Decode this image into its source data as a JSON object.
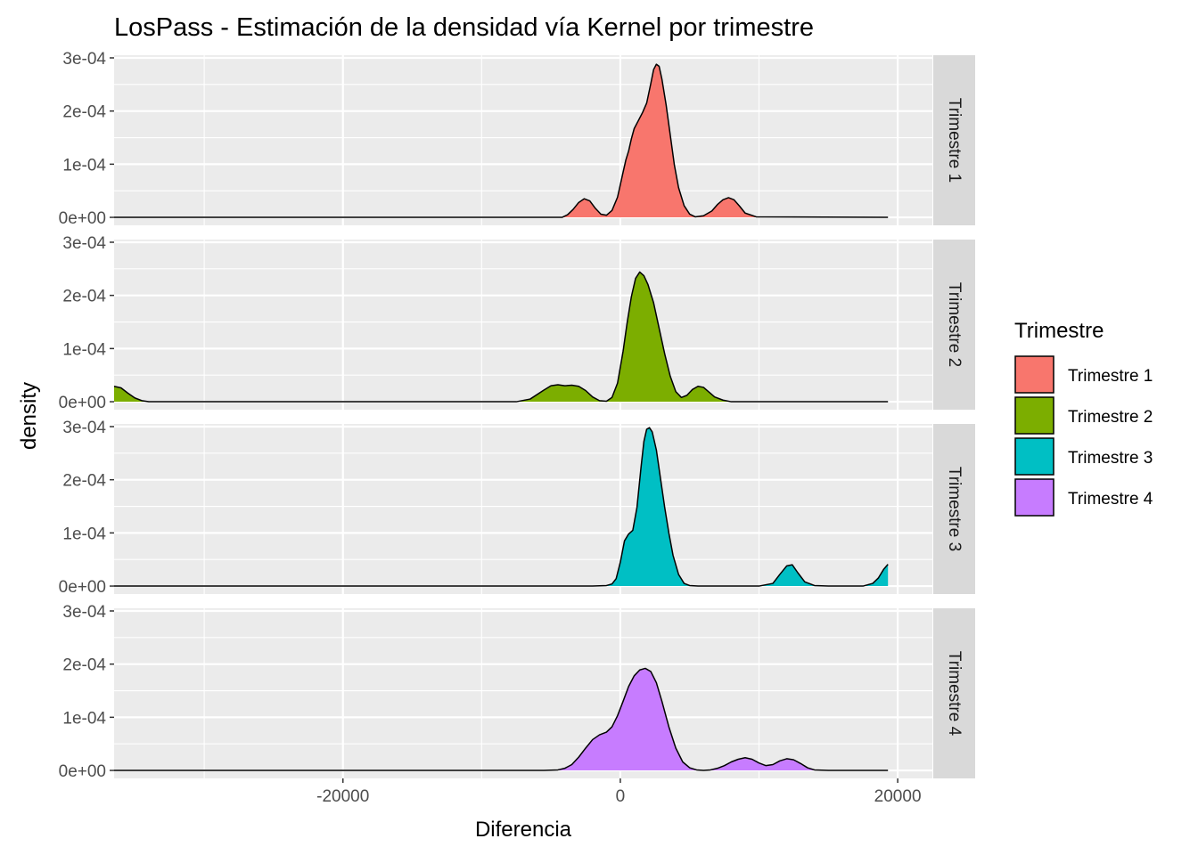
{
  "chart_data": {
    "type": "area",
    "subtype": "density-facet",
    "title": "LosPass - Estimación de la densidad vía Kernel por trimestre",
    "xlabel": "Diferencia",
    "ylabel": "density",
    "xlim": [
      -36500,
      22500
    ],
    "ylim": [
      -1.5e-05,
      0.000305
    ],
    "x_ticks": [
      -20000,
      0,
      20000
    ],
    "x_tick_labels": [
      "-20000",
      "0",
      "20000"
    ],
    "x_minor_ticks": [
      -30000,
      -10000,
      10000
    ],
    "y_ticks": [
      0,
      0.0001,
      0.0002,
      0.0003
    ],
    "y_tick_labels": [
      "0e+00",
      "1e-04",
      "2e-04",
      "3e-04"
    ],
    "y_minor_ticks": [
      5e-05,
      0.00015,
      0.00025
    ],
    "grid": true,
    "legend": {
      "title": "Trimestre",
      "position": "right",
      "entries": [
        "Trimestre 1",
        "Trimestre 2",
        "Trimestre 3",
        "Trimestre 4"
      ]
    },
    "series": [
      {
        "name": "Trimestre 1",
        "facet": "Trimestre 1",
        "color": "#F8766D",
        "x": [
          -36500,
          -6000,
          -4200,
          -3800,
          -3400,
          -3000,
          -2600,
          -2200,
          -1800,
          -1400,
          -1000,
          -600,
          -200,
          200,
          400,
          600,
          800,
          1000,
          1300,
          1600,
          1900,
          2200,
          2400,
          2600,
          2800,
          3000,
          3300,
          3600,
          3900,
          4200,
          4600,
          5000,
          5400,
          6000,
          6600,
          7000,
          7400,
          7800,
          8200,
          8600,
          9000,
          9800,
          19300
        ],
        "y": [
          0,
          0,
          0,
          5e-06,
          1.5e-05,
          2.8e-05,
          3.5e-05,
          3.1e-05,
          1.7e-05,
          6e-06,
          4e-06,
          1.3e-05,
          3.8e-05,
          8.5e-05,
          0.000108,
          0.000125,
          0.000148,
          0.000167,
          0.000182,
          0.000197,
          0.000215,
          0.000252,
          0.000278,
          0.000288,
          0.000284,
          0.00026,
          0.000212,
          0.000155,
          9.8e-05,
          5.6e-05,
          2.2e-05,
          6e-06,
          1e-06,
          3e-06,
          1.2e-05,
          2.4e-05,
          3.3e-05,
          3.7e-05,
          3.3e-05,
          2.1e-05,
          8e-06,
          1e-06,
          0
        ]
      },
      {
        "name": "Trimestre 2",
        "facet": "Trimestre 2",
        "color": "#7CAE00",
        "x": [
          -36500,
          -36000,
          -35500,
          -35000,
          -34500,
          -34000,
          -33000,
          -7500,
          -6500,
          -5500,
          -5000,
          -4500,
          -4000,
          -3500,
          -3000,
          -2500,
          -2000,
          -1500,
          -1000,
          -600,
          -200,
          200,
          500,
          800,
          1100,
          1400,
          1700,
          2000,
          2400,
          2800,
          3200,
          3600,
          4000,
          4400,
          4800,
          5200,
          5600,
          6000,
          6400,
          6800,
          7400,
          8000,
          19300
        ],
        "y": [
          2.9e-05,
          2.6e-05,
          1.6e-05,
          7e-06,
          2e-06,
          0,
          0,
          0,
          5e-06,
          2.2e-05,
          3e-05,
          3.2e-05,
          3e-05,
          3.1e-05,
          2.9e-05,
          2.1e-05,
          9e-06,
          2e-06,
          1e-06,
          8e-06,
          3.5e-05,
          9.5e-05,
          0.00015,
          0.000198,
          0.000232,
          0.000244,
          0.000237,
          0.00022,
          0.000186,
          0.000138,
          9e-05,
          4.8e-05,
          1.9e-05,
          8e-06,
          1.2e-05,
          2.3e-05,
          2.9e-05,
          2.7e-05,
          1.8e-05,
          9e-06,
          3e-06,
          0,
          0
        ]
      },
      {
        "name": "Trimestre 3",
        "facet": "Trimestre 3",
        "color": "#00BFC4",
        "x": [
          -36500,
          -2000,
          -1000,
          -600,
          -300,
          0,
          300,
          600,
          900,
          1200,
          1500,
          1700,
          1900,
          2100,
          2300,
          2600,
          2900,
          3200,
          3500,
          3800,
          4200,
          4600,
          5000,
          5600,
          10000,
          11000,
          11500,
          12000,
          12400,
          12800,
          13300,
          14000,
          15000,
          17500,
          18200,
          18600,
          19000,
          19300
        ],
        "y": [
          0,
          0,
          1e-06,
          4e-06,
          1.4e-05,
          4.5e-05,
          8.5e-05,
          9.8e-05,
          0.000105,
          0.000148,
          0.000225,
          0.000272,
          0.000295,
          0.000298,
          0.00029,
          0.000256,
          0.000202,
          0.000148,
          0.0001,
          5.8e-05,
          2.2e-05,
          5e-06,
          1e-06,
          0,
          0,
          5e-06,
          2.2e-05,
          3.8e-05,
          4e-05,
          2.5e-05,
          8e-06,
          1e-06,
          0,
          0,
          5e-06,
          1.5e-05,
          3.2e-05,
          4.1e-05
        ]
      },
      {
        "name": "Trimestre 4",
        "facet": "Trimestre 4",
        "color": "#C77CFF",
        "x": [
          -36500,
          -5500,
          -4500,
          -4000,
          -3500,
          -3000,
          -2500,
          -2000,
          -1500,
          -1000,
          -600,
          -200,
          200,
          600,
          1000,
          1400,
          1800,
          2200,
          2600,
          3000,
          3500,
          4000,
          4500,
          5000,
          5500,
          6000,
          6500,
          7000,
          7500,
          8000,
          8500,
          9000,
          9500,
          10000,
          10500,
          11000,
          11500,
          12000,
          12500,
          13000,
          13500,
          14000,
          15000,
          16500,
          19300
        ],
        "y": [
          0,
          0,
          1e-06,
          4e-06,
          1.1e-05,
          2.5e-05,
          4.2e-05,
          5.8e-05,
          6.7e-05,
          7.2e-05,
          8.2e-05,
          0.000103,
          0.00013,
          0.000158,
          0.000178,
          0.000189,
          0.000192,
          0.000186,
          0.000165,
          0.00013,
          8.2e-05,
          4.2e-05,
          1.6e-05,
          5e-06,
          1e-06,
          0,
          1e-06,
          4e-06,
          9e-06,
          1.6e-05,
          2.1e-05,
          2.4e-05,
          2.1e-05,
          1.4e-05,
          9e-06,
          1.1e-05,
          1.8e-05,
          2.2e-05,
          2e-05,
          1.3e-05,
          5e-06,
          1e-06,
          0,
          0,
          0
        ]
      }
    ]
  }
}
